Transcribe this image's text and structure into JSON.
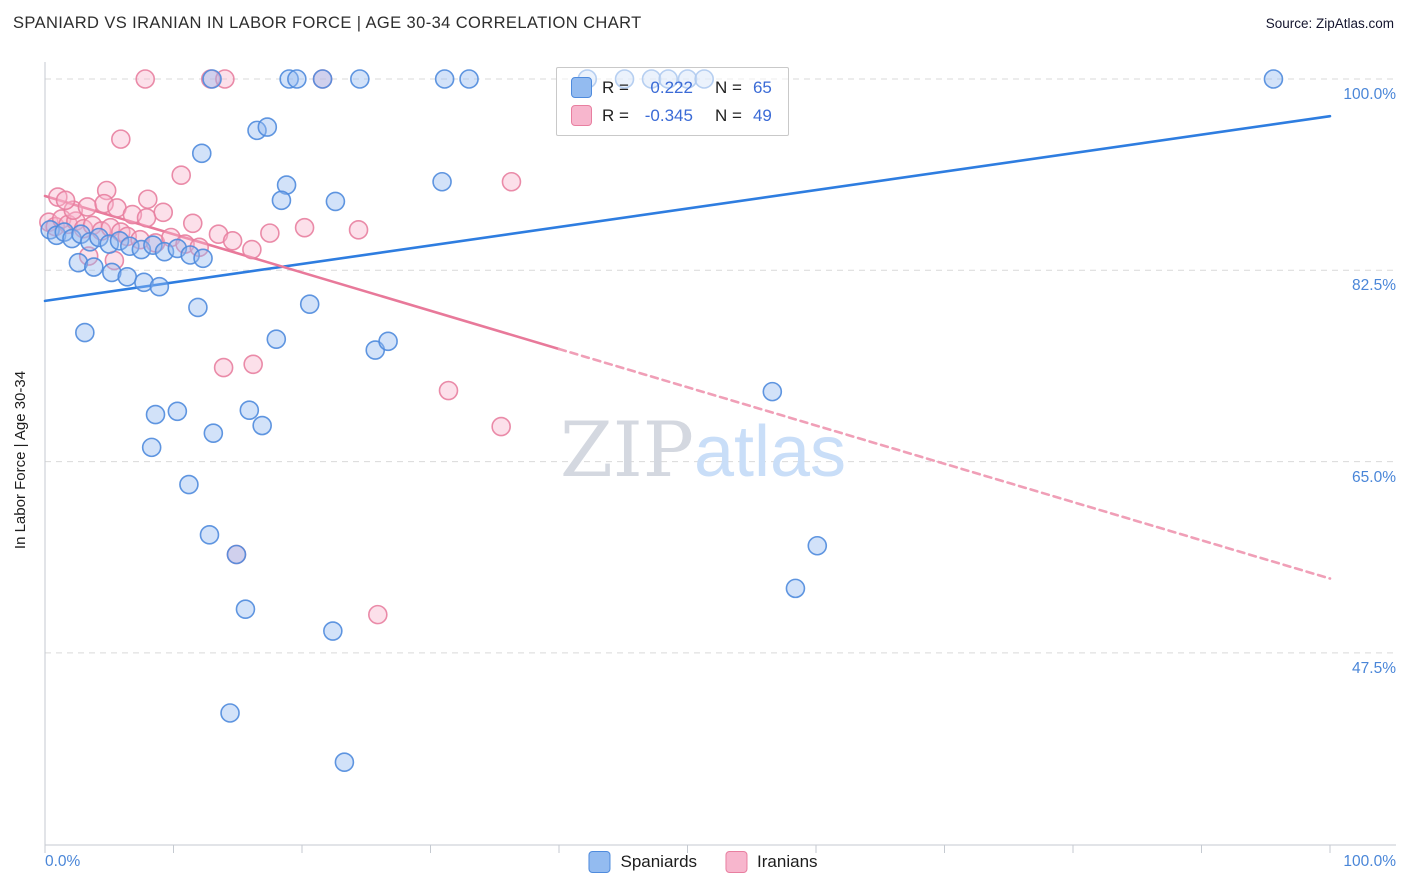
{
  "header": {
    "title": "SPANIARD VS IRANIAN IN LABOR FORCE | AGE 30-34 CORRELATION CHART",
    "source": "Source: ZipAtlas.com"
  },
  "legend_box": {
    "rows": [
      {
        "r_label": "R =",
        "r_value": "0.222",
        "n_label": "N =",
        "n_value": "65"
      },
      {
        "r_label": "R =",
        "r_value": "-0.345",
        "n_label": "N =",
        "n_value": "49"
      }
    ]
  },
  "watermark": {
    "zip": "ZIP",
    "atlas": "atlas"
  },
  "axes": {
    "y_label": "In Labor Force | Age 30-34",
    "y_ticks": [
      "100.0%",
      "82.5%",
      "65.0%",
      "47.5%"
    ],
    "x_min_label": "0.0%",
    "x_max_label": "100.0%"
  },
  "bottom_legend": [
    {
      "label": "Spaniards"
    },
    {
      "label": "Iranians"
    }
  ],
  "chart_data": {
    "type": "scatter",
    "title": "SPANIARD VS IRANIAN IN LABOR FORCE | AGE 30-34 CORRELATION CHART",
    "xlabel": "",
    "ylabel": "In Labor Force | Age 30-34",
    "xlim": [
      0,
      100
    ],
    "ylim": [
      30,
      102
    ],
    "y_gridlines": [
      100,
      82.5,
      65,
      47.5
    ],
    "grid": true,
    "series": [
      {
        "name": "Spaniards",
        "r": 0.222,
        "n": 65,
        "stroke": "#4f8bdd",
        "fill": "#93bbf0",
        "points": [
          [
            19.0,
            100
          ],
          [
            19.6,
            100
          ],
          [
            21.6,
            100
          ],
          [
            24.5,
            100
          ],
          [
            31.1,
            100
          ],
          [
            33.0,
            100
          ],
          [
            95.6,
            100
          ],
          [
            42.2,
            100
          ],
          [
            45.1,
            100
          ],
          [
            47.2,
            100
          ],
          [
            48.5,
            100
          ],
          [
            50.0,
            100
          ],
          [
            51.3,
            100
          ],
          [
            13.0,
            100
          ],
          [
            16.5,
            95.3
          ],
          [
            17.3,
            95.6
          ],
          [
            12.2,
            93.2
          ],
          [
            30.9,
            90.6
          ],
          [
            18.8,
            90.3
          ],
          [
            18.4,
            88.9
          ],
          [
            22.6,
            88.8
          ],
          [
            0.4,
            86.2
          ],
          [
            0.9,
            85.7
          ],
          [
            1.5,
            86.0
          ],
          [
            2.1,
            85.4
          ],
          [
            2.8,
            85.8
          ],
          [
            3.5,
            85.1
          ],
          [
            4.2,
            85.5
          ],
          [
            5.0,
            84.9
          ],
          [
            5.8,
            85.2
          ],
          [
            6.6,
            84.7
          ],
          [
            7.5,
            84.4
          ],
          [
            8.4,
            84.8
          ],
          [
            9.3,
            84.2
          ],
          [
            10.3,
            84.5
          ],
          [
            11.3,
            83.9
          ],
          [
            12.3,
            83.6
          ],
          [
            2.6,
            83.2
          ],
          [
            3.8,
            82.8
          ],
          [
            5.2,
            82.3
          ],
          [
            6.4,
            81.9
          ],
          [
            7.7,
            81.4
          ],
          [
            8.9,
            81.0
          ],
          [
            11.9,
            79.1
          ],
          [
            20.6,
            79.4
          ],
          [
            3.1,
            76.8
          ],
          [
            18.0,
            76.2
          ],
          [
            25.7,
            75.2
          ],
          [
            26.7,
            76.0
          ],
          [
            8.6,
            69.3
          ],
          [
            10.3,
            69.6
          ],
          [
            15.9,
            69.7
          ],
          [
            16.9,
            68.3
          ],
          [
            13.1,
            67.6
          ],
          [
            8.3,
            66.3
          ],
          [
            56.6,
            71.4
          ],
          [
            60.1,
            57.3
          ],
          [
            58.4,
            53.4
          ],
          [
            11.2,
            62.9
          ],
          [
            12.8,
            58.3
          ],
          [
            14.9,
            56.5
          ],
          [
            15.6,
            51.5
          ],
          [
            22.4,
            49.5
          ],
          [
            14.4,
            42.0
          ],
          [
            23.3,
            37.5
          ]
        ]
      },
      {
        "name": "Iranians",
        "r": -0.345,
        "n": 49,
        "stroke": "#e87fa0",
        "fill": "#f7b6cd",
        "points": [
          [
            7.8,
            100
          ],
          [
            12.9,
            100
          ],
          [
            14.0,
            100
          ],
          [
            21.6,
            100
          ],
          [
            5.9,
            94.5
          ],
          [
            4.8,
            89.8
          ],
          [
            36.3,
            90.6
          ],
          [
            10.6,
            91.2
          ],
          [
            0.3,
            86.9
          ],
          [
            0.8,
            86.5
          ],
          [
            1.3,
            87.2
          ],
          [
            1.8,
            86.7
          ],
          [
            2.4,
            87.0
          ],
          [
            3.0,
            86.3
          ],
          [
            3.7,
            86.6
          ],
          [
            4.4,
            86.1
          ],
          [
            5.1,
            86.4
          ],
          [
            5.9,
            86.0
          ],
          [
            2.2,
            88.0
          ],
          [
            3.3,
            88.3
          ],
          [
            4.6,
            88.6
          ],
          [
            5.6,
            88.2
          ],
          [
            6.8,
            87.6
          ],
          [
            7.9,
            87.3
          ],
          [
            9.2,
            87.8
          ],
          [
            6.4,
            85.6
          ],
          [
            7.4,
            85.3
          ],
          [
            8.6,
            85.0
          ],
          [
            9.8,
            85.5
          ],
          [
            10.9,
            84.9
          ],
          [
            12.0,
            84.6
          ],
          [
            3.4,
            83.8
          ],
          [
            5.4,
            83.4
          ],
          [
            13.5,
            85.8
          ],
          [
            14.6,
            85.2
          ],
          [
            20.2,
            86.4
          ],
          [
            24.4,
            86.2
          ],
          [
            1.0,
            89.2
          ],
          [
            1.6,
            88.9
          ],
          [
            16.1,
            84.4
          ],
          [
            17.5,
            85.9
          ],
          [
            11.5,
            86.8
          ],
          [
            8.0,
            89.0
          ],
          [
            13.9,
            73.6
          ],
          [
            16.2,
            73.9
          ],
          [
            31.4,
            71.5
          ],
          [
            35.5,
            68.2
          ],
          [
            25.9,
            51.0
          ],
          [
            14.9,
            56.5
          ]
        ]
      }
    ],
    "trend_lines": [
      {
        "series": "Spaniards",
        "color": "#2e7de0",
        "dash": "",
        "x": [
          0,
          100
        ],
        "y": [
          79.7,
          96.6
        ]
      },
      {
        "series": "Iranians",
        "color": "#e8799a",
        "dash": "",
        "x": [
          0,
          40
        ],
        "y": [
          89.3,
          75.3
        ]
      },
      {
        "series": "Iranians",
        "color": "#f09fb7",
        "dash": "7 5",
        "x": [
          40,
          100
        ],
        "y": [
          75.3,
          54.3
        ]
      }
    ]
  }
}
